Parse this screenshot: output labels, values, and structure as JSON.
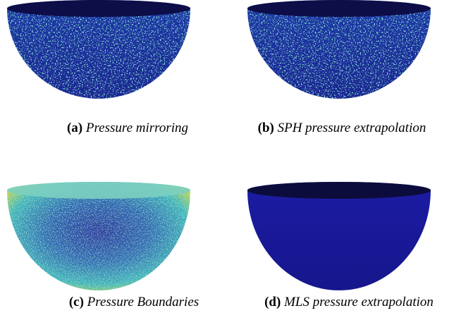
{
  "subfigures": [
    {
      "label": "(a)",
      "caption": "Pressure mirroring"
    },
    {
      "label": "(b)",
      "caption": "SPH pressure extrapolation"
    },
    {
      "label": "(c)",
      "caption": "Pressure Boundaries"
    },
    {
      "label": "(d)",
      "caption": "MLS pressure extrapolation"
    }
  ]
}
